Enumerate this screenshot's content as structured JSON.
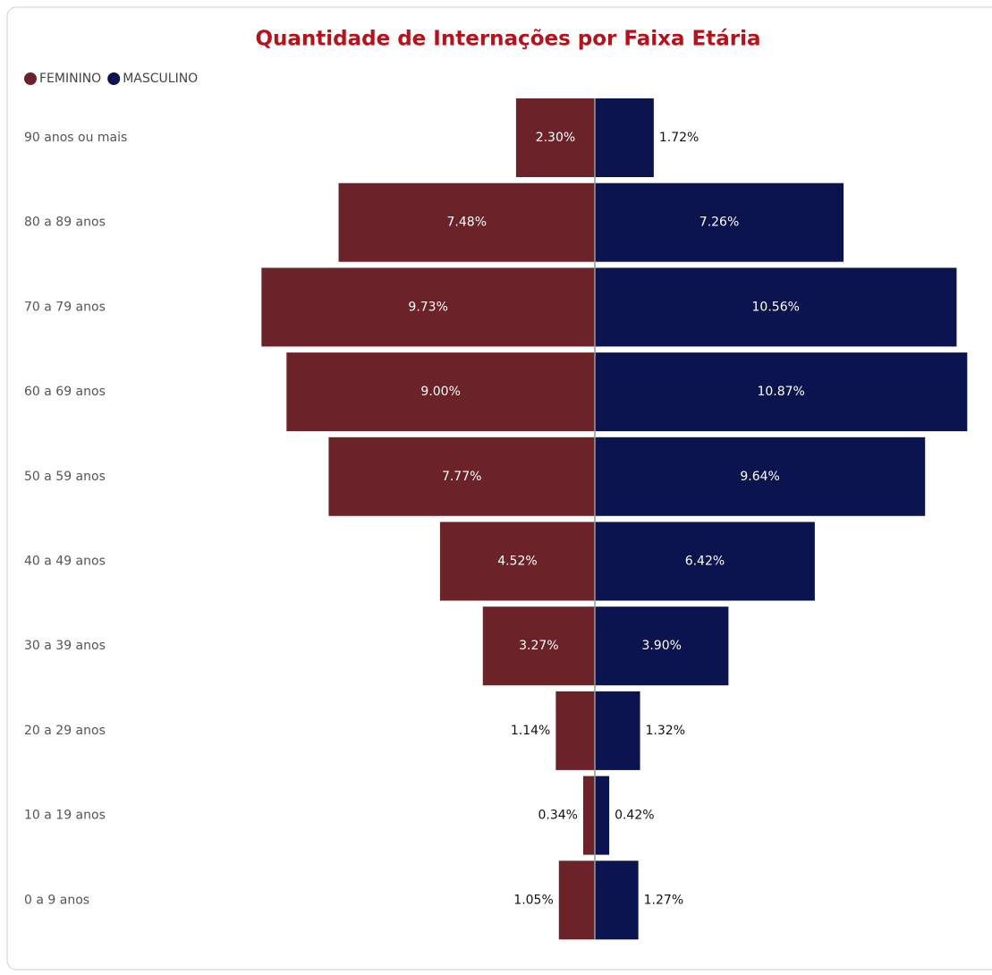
{
  "chart_data": {
    "type": "bar",
    "title": "Quantidade de Internações por Faixa Etária",
    "categories": [
      "90 anos ou mais",
      "80 a 89 anos",
      "70 a 79 anos",
      "60 a 69 anos",
      "50 a 59 anos",
      "40 a 49 anos",
      "30 a 39 anos",
      "20 a 29 anos",
      "10 a 19 anos",
      "0 a 9 anos"
    ],
    "series": [
      {
        "name": "FEMININO",
        "color": "#6b2228",
        "values": [
          2.3,
          7.48,
          9.73,
          9.0,
          7.77,
          4.52,
          3.27,
          1.14,
          0.34,
          1.05
        ],
        "value_labels": [
          "2.30%",
          "7.48%",
          "9.73%",
          "9.00%",
          "7.77%",
          "4.52%",
          "3.27%",
          "1.14%",
          "0.34%",
          "1.05%"
        ]
      },
      {
        "name": "MASCULINO",
        "color": "#0c1450",
        "values": [
          1.72,
          7.26,
          10.56,
          10.87,
          9.64,
          6.42,
          3.9,
          1.32,
          0.42,
          1.27
        ],
        "value_labels": [
          "1.72%",
          "7.26%",
          "10.56%",
          "10.87%",
          "9.64%",
          "6.42%",
          "3.90%",
          "1.32%",
          "0.42%",
          "1.27%"
        ]
      }
    ],
    "legend": "top-left"
  }
}
